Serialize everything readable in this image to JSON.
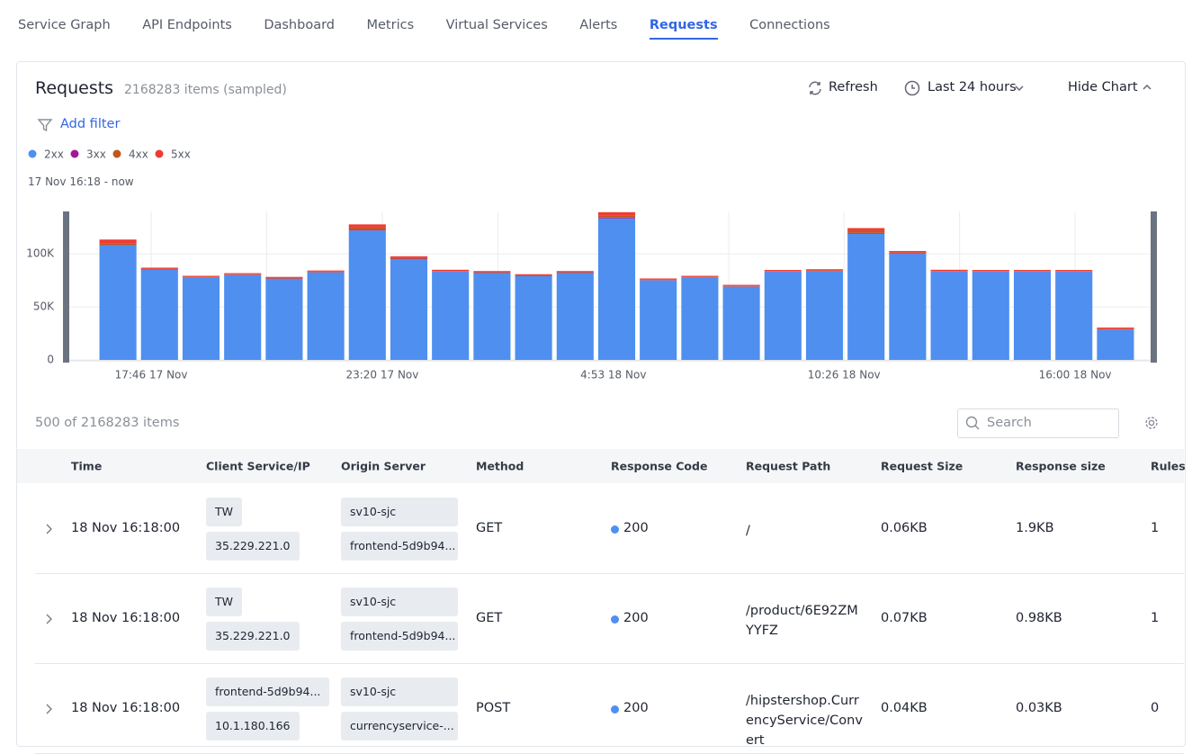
{
  "tabs": [
    {
      "label": "Service Graph"
    },
    {
      "label": "API Endpoints"
    },
    {
      "label": "Dashboard"
    },
    {
      "label": "Metrics"
    },
    {
      "label": "Virtual Services"
    },
    {
      "label": "Alerts"
    },
    {
      "label": "Requests",
      "active": true
    },
    {
      "label": "Connections"
    }
  ],
  "panel": {
    "title": "Requests",
    "count": "2168283 items (sampled)",
    "refresh": "Refresh",
    "range": "Last 24 hours",
    "toggle": "Hide Chart",
    "add_filter": "Add filter",
    "time_range": "17 Nov 16:18 - now"
  },
  "chart_data": {
    "type": "bar",
    "stacked": true,
    "categories": [
      null,
      null,
      null,
      null,
      null,
      null,
      null,
      null,
      null,
      null,
      null,
      null,
      null,
      null,
      null,
      null,
      null,
      null,
      null,
      null,
      null,
      null,
      null,
      null,
      null
    ],
    "series": [
      {
        "name": "2xx",
        "color": "#4e8ff0",
        "values": [
          108000,
          85000,
          77500,
          80000,
          76500,
          82500,
          122000,
          95000,
          83000,
          82000,
          79000,
          82000,
          133500,
          75000,
          77500,
          69000,
          83000,
          83500,
          119000,
          100000,
          83000,
          83000,
          83000,
          83000,
          28500
        ]
      },
      {
        "name": "3xx",
        "color": "#a0179a",
        "values": [
          500,
          300,
          300,
          300,
          300,
          300,
          800,
          400,
          300,
          300,
          300,
          300,
          800,
          300,
          300,
          300,
          300,
          300,
          800,
          400,
          300,
          300,
          300,
          300,
          200
        ]
      },
      {
        "name": "4xx",
        "color": "#c1561b",
        "values": [
          1500,
          500,
          500,
          500,
          500,
          500,
          2000,
          800,
          500,
          500,
          500,
          500,
          2000,
          500,
          500,
          500,
          500,
          500,
          2000,
          800,
          500,
          500,
          500,
          500,
          300
        ]
      },
      {
        "name": "5xx",
        "color": "#ef3b32",
        "values": [
          3500,
          1200,
          1000,
          1000,
          1000,
          1000,
          3000,
          1500,
          1200,
          1000,
          1000,
          1000,
          3000,
          1000,
          1000,
          1000,
          1000,
          1200,
          2500,
          1500,
          1200,
          1000,
          1000,
          1000,
          1500
        ]
      }
    ],
    "ylim": [
      0,
      140000
    ],
    "yticks": [
      0,
      {
        "value": 50000,
        "label": "50K"
      },
      {
        "value": 100000,
        "label": "100K"
      }
    ],
    "xticks": [
      {
        "value": 1.3,
        "label": "17:46 17 Nov"
      },
      {
        "value": 6.86,
        "label": "23:20 17 Nov"
      },
      {
        "value": 12.42,
        "label": "4:53 18 Nov"
      },
      {
        "value": 17.97,
        "label": "10:26 18 Nov"
      },
      {
        "value": 23.53,
        "label": "16:00 18 Nov"
      }
    ],
    "grid": true,
    "legend": "top-left"
  },
  "table": {
    "summary": "500 of 2168283 items",
    "search_placeholder": "Search",
    "columns": [
      "Time",
      "Client Service/IP",
      "Origin Server",
      "Method",
      "Response Code",
      "Request Path",
      "Request Size",
      "Response size",
      "Rules"
    ],
    "rows": [
      [
        "18 Nov 16:18:00",
        [
          "TW",
          "35.229.221.0"
        ],
        [
          "sv10-sjc",
          "frontend-5d9b94..."
        ],
        "GET",
        200,
        "/",
        "0.06KB",
        "1.9KB",
        1
      ],
      [
        "18 Nov 16:18:00",
        [
          "TW",
          "35.229.221.0"
        ],
        [
          "sv10-sjc",
          "frontend-5d9b94..."
        ],
        "GET",
        200,
        "/product/6E92ZMYYFZ",
        "0.07KB",
        "0.98KB",
        1
      ],
      [
        "18 Nov 16:18:00",
        [
          "frontend-5d9b94...",
          "10.1.180.166"
        ],
        [
          "sv10-sjc",
          "currencyservice-..."
        ],
        "POST",
        200,
        "/hipstershop.CurrencyService/Convert",
        "0.04KB",
        "0.03KB",
        0
      ]
    ]
  }
}
